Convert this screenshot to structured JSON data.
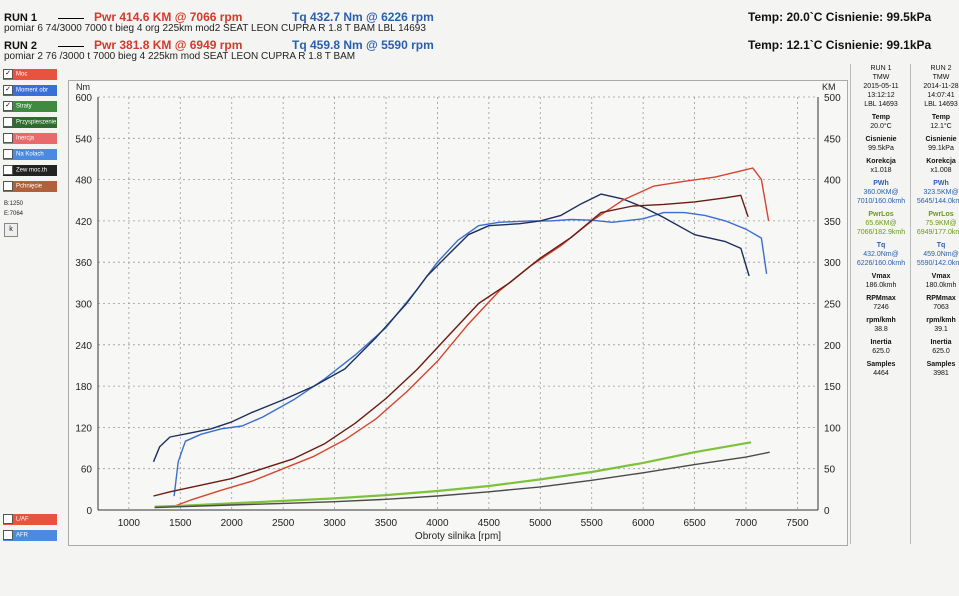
{
  "header": {
    "run1": {
      "label": "RUN 1",
      "pwr": "Pwr  414.6 KM @ 7066 rpm",
      "tq": "Tq  432.7 Nm @ 6226 rpm",
      "desc": "pomiar 6 74/3000 7000 t bieg 4 org 225km mod2 SEAT LEON CUPRA R 1.8 T BAM LBL 14693",
      "temp": "Temp: 20.0`C   Cisnienie: 99.5kPa"
    },
    "run2": {
      "label": "RUN 2",
      "pwr": "Pwr  381.8 KM @ 6949 rpm",
      "tq": "Tq  459.8 Nm @ 5590 rpm",
      "desc": "pomiar 2 76 /3000 t 7000   bieg 4  225km mod SEAT LEON CUPRA R 1.8 T BAM",
      "temp": "Temp: 12.1`C   Cisnienie: 99.1kPa"
    }
  },
  "sidebar": {
    "items": [
      {
        "label": "Moc",
        "color": "#e8533f",
        "checked": "✓"
      },
      {
        "label": "Moment obr",
        "color": "#3a6fd8",
        "checked": "✓"
      },
      {
        "label": "Straty",
        "color": "#3e8a3e",
        "checked": "✓"
      },
      {
        "label": "Przyspieszenie",
        "color": "#2f6b2f",
        "checked": ""
      },
      {
        "label": "Inercja",
        "color": "#e86a6a",
        "checked": ""
      },
      {
        "label": "Na Kolach",
        "color": "#4a8ae0",
        "checked": ""
      },
      {
        "label": "Zew moc.th",
        "color": "#222222",
        "checked": ""
      },
      {
        "label": "Pchnięcie",
        "color": "#b0603a",
        "checked": ""
      }
    ],
    "b_value": "B:1250",
    "e_value": "E:7064",
    "k_button": "k",
    "lap_label": "L/AF",
    "afr_label": "AFR"
  },
  "info_columns": [
    {
      "run": "RUN 1",
      "site": "TMW",
      "date": "2015-05-11",
      "time": "13:12:12",
      "lbl": "LBL 14693",
      "temp_label": "Temp",
      "temp": "20.0°C",
      "cis_label": "Cisnienie",
      "cis": "99.5kPa",
      "kor_label": "Korekcja",
      "kor": "x1.018",
      "pwh_label": "PWh",
      "pwh": "360.0KM@",
      "pwh2": "7010/160.0kmh",
      "pwrlos_label": "PwrLos",
      "pwrlos": "65.6KM@",
      "pwrlos2": "7066/182.9kmh",
      "tq_label": "Tq",
      "tq": "432.0Nm@",
      "tq2": "6226/160.0kmh",
      "vmax_label": "Vmax",
      "vmax": "186.0kmh",
      "rpmmax_label": "RPMmax",
      "rpmmax": "7246",
      "rpmkmh_label": "rpm/kmh",
      "rpmkmh": "38.8",
      "inertia_label": "Inertia",
      "inertia": "625.0",
      "samples_label": "Samples",
      "samples": "4464"
    },
    {
      "run": "RUN 2",
      "site": "TMW",
      "date": "2014-11-28",
      "time": "14:07:41",
      "lbl": "LBL 14693",
      "temp_label": "Temp",
      "temp": "12.1°C",
      "cis_label": "Cisnienie",
      "cis": "99.1kPa",
      "kor_label": "Korekcja",
      "kor": "x1.008",
      "pwh_label": "PWh",
      "pwh": "323.5KM@",
      "pwh2": "5645/144.0kmh",
      "pwrlos_label": "PwrLos",
      "pwrlos": "75.9KM@",
      "pwrlos2": "6949/177.0kmh",
      "tq_label": "Tq",
      "tq": "459.0Nm@",
      "tq2": "5590/142.0kmh",
      "vmax_label": "Vmax",
      "vmax": "180.0kmh",
      "rpmmax_label": "RPMmax",
      "rpmmax": "7063",
      "rpmkmh_label": "rpm/kmh",
      "rpmkmh": "39.1",
      "inertia_label": "Inertia",
      "inertia": "625.0",
      "samples_label": "Samples",
      "samples": "3981"
    }
  ],
  "chart_data": {
    "type": "line",
    "xlabel": "Obroty silnika [rpm]",
    "left_unit": "Nm",
    "right_unit": "KM",
    "xlim": [
      700,
      7700
    ],
    "ylim_left": [
      0,
      600
    ],
    "ylim_right": [
      0,
      500
    ],
    "x_ticks": [
      1000,
      1500,
      2000,
      2500,
      3000,
      3500,
      4000,
      4500,
      5000,
      5500,
      6000,
      6500,
      7000,
      7500
    ],
    "y_left_ticks": [
      0,
      60,
      120,
      180,
      240,
      300,
      360,
      420,
      480,
      540,
      600
    ],
    "y_right_ticks": [
      0,
      50,
      100,
      150,
      200,
      250,
      300,
      350,
      400,
      450,
      500
    ],
    "colors": {
      "tq1": "#3a6fcf",
      "tq2": "#1c2f5c",
      "pwr1": "#d6452f",
      "pwr2": "#6a1c12",
      "loss1": "#7dc23a",
      "loss2": "#4a4a4a"
    },
    "series": [
      {
        "axis": "left",
        "color_key": "tq1",
        "x": [
          1440,
          1480,
          1550,
          1700,
          1900,
          2100,
          2300,
          2600,
          2900,
          3200,
          3500,
          3800,
          4000,
          4200,
          4400,
          4600,
          4900,
          5100,
          5300,
          5500,
          5700,
          6000,
          6200,
          6400,
          6600,
          6800,
          7000,
          7150,
          7200
        ],
        "y": [
          20,
          70,
          100,
          110,
          118,
          122,
          135,
          160,
          190,
          225,
          265,
          320,
          360,
          392,
          413,
          418,
          420,
          420,
          422,
          421,
          418,
          423,
          432,
          432,
          428,
          420,
          408,
          395,
          343
        ]
      },
      {
        "axis": "left",
        "color_key": "tq2",
        "x": [
          1240,
          1300,
          1400,
          1600,
          1800,
          2000,
          2200,
          2500,
          2800,
          3100,
          3400,
          3700,
          3900,
          4100,
          4300,
          4500,
          4800,
          5000,
          5200,
          5400,
          5590,
          5800,
          6000,
          6200,
          6500,
          6800,
          6950,
          7030
        ],
        "y": [
          70,
          92,
          106,
          112,
          118,
          128,
          142,
          160,
          180,
          205,
          250,
          300,
          340,
          370,
          400,
          413,
          416,
          420,
          428,
          445,
          459,
          452,
          440,
          425,
          400,
          390,
          380,
          340
        ]
      },
      {
        "axis": "right",
        "color_key": "pwr1",
        "x": [
          1450,
          1600,
          1900,
          2200,
          2500,
          2800,
          3100,
          3400,
          3700,
          4000,
          4300,
          4600,
          4900,
          5200,
          5500,
          5800,
          6100,
          6400,
          6700,
          7000,
          7066,
          7150,
          7220
        ],
        "y": [
          5,
          12,
          24,
          35,
          50,
          65,
          85,
          110,
          143,
          180,
          225,
          265,
          295,
          320,
          350,
          375,
          392,
          398,
          403,
          412,
          414,
          400,
          350
        ]
      },
      {
        "axis": "right",
        "color_key": "pwr2",
        "x": [
          1240,
          1400,
          1700,
          2000,
          2300,
          2600,
          2900,
          3200,
          3500,
          3800,
          4100,
          4400,
          4700,
          5000,
          5300,
          5590,
          5900,
          6200,
          6500,
          6800,
          6949,
          7020
        ],
        "y": [
          17,
          22,
          30,
          38,
          50,
          62,
          80,
          105,
          135,
          170,
          210,
          250,
          275,
          305,
          330,
          360,
          368,
          370,
          373,
          378,
          381,
          355
        ]
      },
      {
        "axis": "right",
        "color_key": "loss1",
        "x": [
          1250,
          1500,
          2000,
          2500,
          3000,
          3500,
          4000,
          4500,
          5000,
          5500,
          6000,
          6500,
          7050
        ],
        "y": [
          4,
          5,
          8,
          11,
          14,
          18,
          23,
          29,
          37,
          46,
          57,
          70,
          82
        ]
      },
      {
        "axis": "right",
        "color_key": "loss2",
        "x": [
          1250,
          1500,
          2000,
          2500,
          3000,
          3500,
          4000,
          4500,
          5000,
          5500,
          6000,
          6500,
          7000,
          7230
        ],
        "y": [
          3,
          4,
          6,
          8,
          10,
          13,
          17,
          22,
          28,
          36,
          45,
          55,
          64,
          70
        ]
      }
    ]
  }
}
